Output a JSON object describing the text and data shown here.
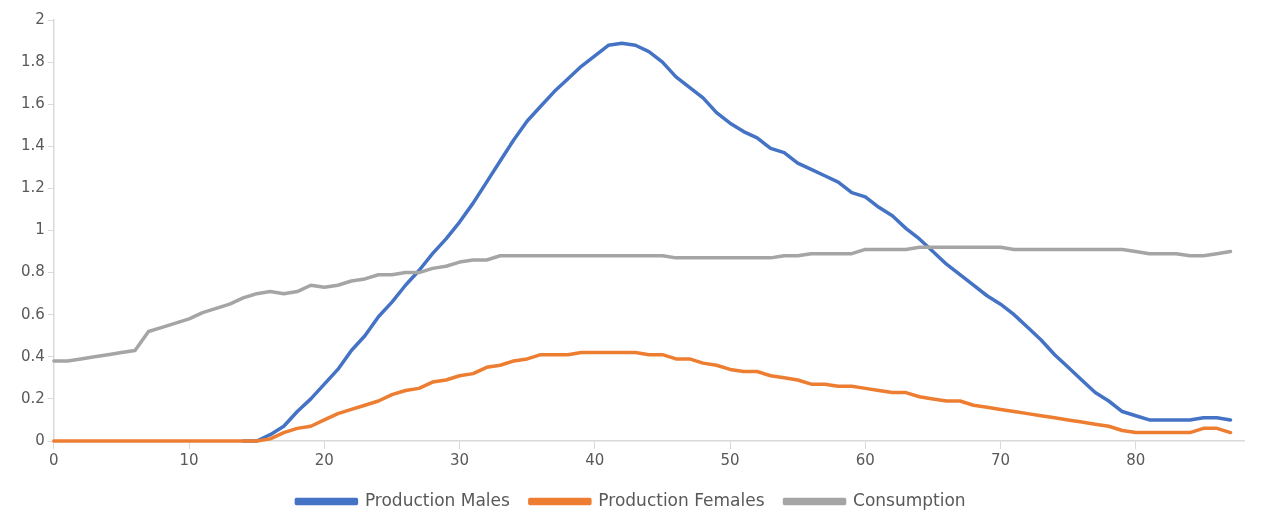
{
  "chart_data": {
    "type": "line",
    "x": [
      0,
      1,
      2,
      3,
      4,
      5,
      6,
      7,
      8,
      9,
      10,
      11,
      12,
      13,
      14,
      15,
      16,
      17,
      18,
      19,
      20,
      21,
      22,
      23,
      24,
      25,
      26,
      27,
      28,
      29,
      30,
      31,
      32,
      33,
      34,
      35,
      36,
      37,
      38,
      39,
      40,
      41,
      42,
      43,
      44,
      45,
      46,
      47,
      48,
      49,
      50,
      51,
      52,
      53,
      54,
      55,
      56,
      57,
      58,
      59,
      60,
      61,
      62,
      63,
      64,
      65,
      66,
      67,
      68,
      69,
      70,
      71,
      72,
      73,
      74,
      75,
      76,
      77,
      78,
      79,
      80,
      81,
      82,
      83,
      84,
      85,
      86,
      87
    ],
    "series": [
      {
        "name": "Production Males",
        "color": "#4472c4",
        "values": [
          null,
          null,
          null,
          null,
          null,
          null,
          null,
          null,
          null,
          null,
          null,
          null,
          null,
          null,
          0,
          0,
          0.03,
          0.07,
          0.14,
          0.2,
          0.27,
          0.34,
          0.43,
          0.5,
          0.59,
          0.66,
          0.74,
          0.81,
          0.89,
          0.96,
          1.04,
          1.13,
          1.23,
          1.33,
          1.43,
          1.52,
          1.59,
          1.66,
          1.72,
          1.78,
          1.83,
          1.88,
          1.89,
          1.88,
          1.85,
          1.8,
          1.73,
          1.68,
          1.63,
          1.56,
          1.51,
          1.47,
          1.44,
          1.39,
          1.37,
          1.32,
          1.29,
          1.26,
          1.23,
          1.18,
          1.16,
          1.11,
          1.07,
          1.01,
          0.96,
          0.9,
          0.84,
          0.79,
          0.74,
          0.69,
          0.65,
          0.6,
          0.54,
          0.48,
          0.41,
          0.35,
          0.29,
          0.23,
          0.19,
          0.14,
          0.12,
          0.1,
          0.1,
          0.1,
          0.1,
          0.11,
          0.11,
          0.1
        ]
      },
      {
        "name": "Production Females",
        "color": "#ed7d31",
        "values": [
          0,
          0,
          0,
          0,
          0,
          0,
          0,
          0,
          0,
          0,
          0,
          0,
          0,
          0,
          0,
          0,
          0.01,
          0.04,
          0.06,
          0.07,
          0.1,
          0.13,
          0.15,
          0.17,
          0.19,
          0.22,
          0.24,
          0.25,
          0.28,
          0.29,
          0.31,
          0.32,
          0.35,
          0.36,
          0.38,
          0.39,
          0.41,
          0.41,
          0.41,
          0.42,
          0.42,
          0.42,
          0.42,
          0.42,
          0.41,
          0.41,
          0.39,
          0.39,
          0.37,
          0.36,
          0.34,
          0.33,
          0.33,
          0.31,
          0.3,
          0.29,
          0.27,
          0.27,
          0.26,
          0.26,
          0.25,
          0.24,
          0.23,
          0.23,
          0.21,
          0.2,
          0.19,
          0.19,
          0.17,
          0.16,
          0.15,
          0.14,
          0.13,
          0.12,
          0.11,
          0.1,
          0.09,
          0.08,
          0.07,
          0.05,
          0.04,
          0.04,
          0.04,
          0.04,
          0.04,
          0.06,
          0.06,
          0.04
        ]
      },
      {
        "name": "Consumption",
        "color": "#a5a5a5",
        "values": [
          0.38,
          0.38,
          0.39,
          0.4,
          0.41,
          0.42,
          0.43,
          0.52,
          0.54,
          0.56,
          0.58,
          0.61,
          0.63,
          0.65,
          0.68,
          0.7,
          0.71,
          0.7,
          0.71,
          0.74,
          0.73,
          0.74,
          0.76,
          0.77,
          0.79,
          0.79,
          0.8,
          0.8,
          0.82,
          0.83,
          0.85,
          0.86,
          0.86,
          0.88,
          0.88,
          0.88,
          0.88,
          0.88,
          0.88,
          0.88,
          0.88,
          0.88,
          0.88,
          0.88,
          0.88,
          0.88,
          0.87,
          0.87,
          0.87,
          0.87,
          0.87,
          0.87,
          0.87,
          0.87,
          0.88,
          0.88,
          0.89,
          0.89,
          0.89,
          0.89,
          0.91,
          0.91,
          0.91,
          0.91,
          0.92,
          0.92,
          0.92,
          0.92,
          0.92,
          0.92,
          0.92,
          0.91,
          0.91,
          0.91,
          0.91,
          0.91,
          0.91,
          0.91,
          0.91,
          0.91,
          0.9,
          0.89,
          0.89,
          0.89,
          0.88,
          0.88,
          0.89,
          0.9
        ]
      }
    ],
    "xlim": [
      0,
      88
    ],
    "xticks": [
      0,
      10,
      20,
      30,
      40,
      50,
      60,
      70,
      80
    ],
    "ylim": [
      0,
      2
    ],
    "yticks": [
      0,
      0.2,
      0.4,
      0.6,
      0.8,
      1,
      1.2,
      1.4,
      1.6,
      1.8,
      2
    ],
    "grid": false,
    "legend": "bottom",
    "marker": "none",
    "line_style": "solid"
  }
}
